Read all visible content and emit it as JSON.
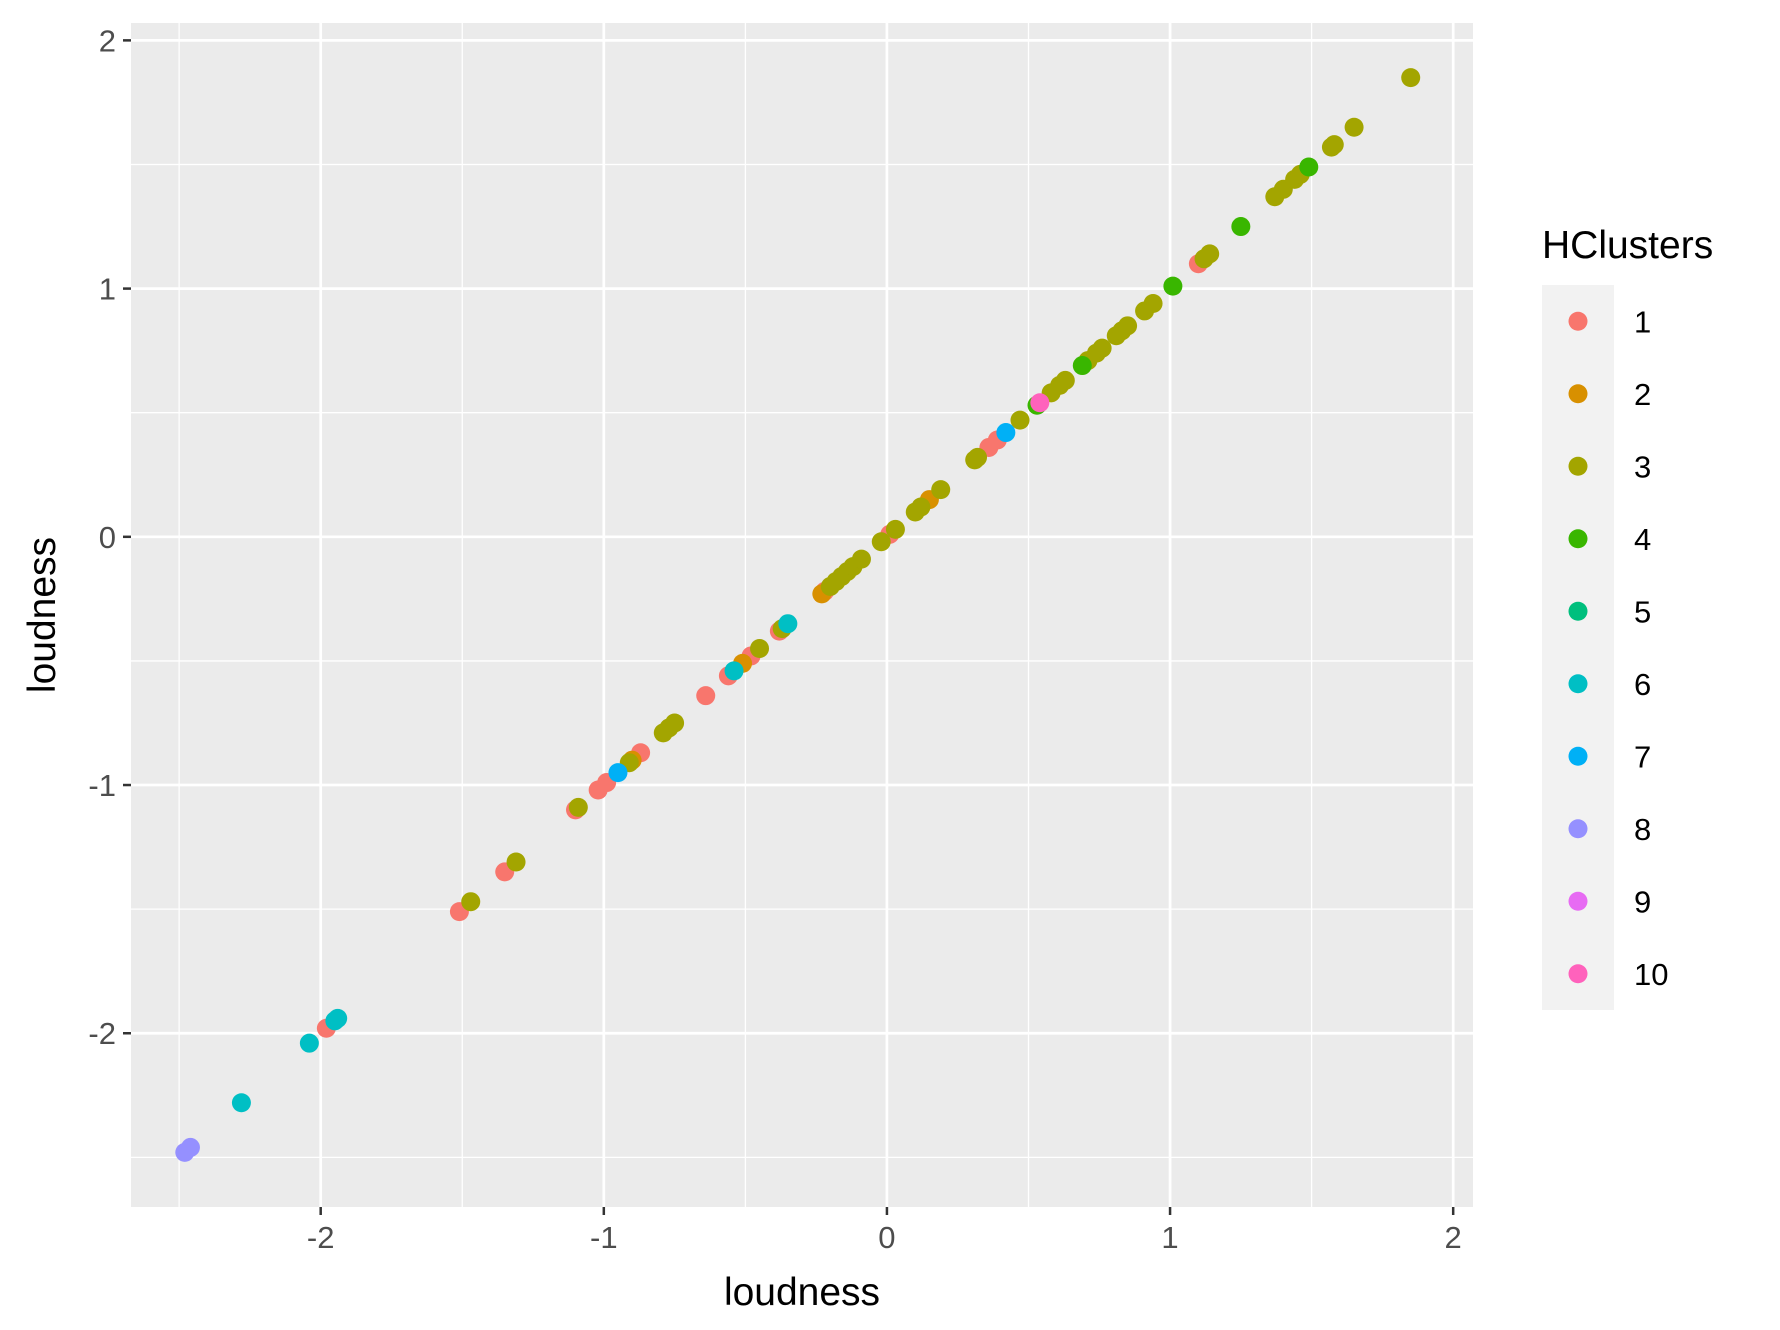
{
  "chart_data": {
    "type": "scatter",
    "title": "",
    "xlabel": "loudness",
    "ylabel": "loudness",
    "xlim": [
      -2.67,
      2.07
    ],
    "ylim": [
      -2.7,
      2.07
    ],
    "xticks": [
      -2,
      -1,
      0,
      1,
      2
    ],
    "yticks": [
      -2,
      -1,
      0,
      1,
      2
    ],
    "grid": true,
    "background": "#ebebeb",
    "legend": {
      "title": "HClusters",
      "placement": "right",
      "background": "#f2f2f2"
    },
    "series": [
      {
        "name": "1",
        "color": "#F8766D",
        "points": [
          [
            -1.98,
            -1.98
          ],
          [
            -1.51,
            -1.51
          ],
          [
            -1.35,
            -1.35
          ],
          [
            -1.1,
            -1.1
          ],
          [
            -1.02,
            -1.02
          ],
          [
            -0.99,
            -0.99
          ],
          [
            -0.87,
            -0.87
          ],
          [
            -0.64,
            -0.64
          ],
          [
            -0.56,
            -0.56
          ],
          [
            -0.48,
            -0.48
          ],
          [
            -0.38,
            -0.38
          ],
          [
            -0.22,
            -0.22
          ],
          [
            0.01,
            0.01
          ],
          [
            0.36,
            0.36
          ],
          [
            0.39,
            0.39
          ],
          [
            1.1,
            1.1
          ]
        ]
      },
      {
        "name": "2",
        "color": "#D89000",
        "points": [
          [
            -0.9,
            -0.9
          ],
          [
            -0.51,
            -0.51
          ],
          [
            -0.23,
            -0.23
          ],
          [
            0.15,
            0.15
          ]
        ]
      },
      {
        "name": "3",
        "color": "#A3A500",
        "points": [
          [
            -1.47,
            -1.47
          ],
          [
            -1.31,
            -1.31
          ],
          [
            -1.09,
            -1.09
          ],
          [
            -0.91,
            -0.91
          ],
          [
            -0.79,
            -0.79
          ],
          [
            -0.77,
            -0.77
          ],
          [
            -0.75,
            -0.75
          ],
          [
            -0.45,
            -0.45
          ],
          [
            -0.37,
            -0.37
          ],
          [
            -0.2,
            -0.2
          ],
          [
            -0.18,
            -0.18
          ],
          [
            -0.16,
            -0.16
          ],
          [
            -0.14,
            -0.14
          ],
          [
            -0.12,
            -0.12
          ],
          [
            -0.09,
            -0.09
          ],
          [
            -0.02,
            -0.02
          ],
          [
            0.03,
            0.03
          ],
          [
            0.1,
            0.1
          ],
          [
            0.12,
            0.12
          ],
          [
            0.19,
            0.19
          ],
          [
            0.31,
            0.31
          ],
          [
            0.32,
            0.32
          ],
          [
            0.47,
            0.47
          ],
          [
            0.58,
            0.58
          ],
          [
            0.61,
            0.61
          ],
          [
            0.63,
            0.63
          ],
          [
            0.71,
            0.71
          ],
          [
            0.74,
            0.74
          ],
          [
            0.76,
            0.76
          ],
          [
            0.81,
            0.81
          ],
          [
            0.83,
            0.83
          ],
          [
            0.85,
            0.85
          ],
          [
            0.91,
            0.91
          ],
          [
            0.94,
            0.94
          ],
          [
            1.12,
            1.12
          ],
          [
            1.14,
            1.14
          ],
          [
            1.37,
            1.37
          ],
          [
            1.4,
            1.4
          ],
          [
            1.44,
            1.44
          ],
          [
            1.46,
            1.46
          ],
          [
            1.57,
            1.57
          ],
          [
            1.58,
            1.58
          ],
          [
            1.65,
            1.65
          ],
          [
            1.85,
            1.85
          ]
        ]
      },
      {
        "name": "4",
        "color": "#39B600",
        "points": [
          [
            0.53,
            0.53
          ],
          [
            0.69,
            0.69
          ],
          [
            1.01,
            1.01
          ],
          [
            1.25,
            1.25
          ],
          [
            1.49,
            1.49
          ]
        ]
      },
      {
        "name": "5",
        "color": "#00BF7D",
        "points": []
      },
      {
        "name": "6",
        "color": "#00BFC4",
        "points": [
          [
            -2.28,
            -2.28
          ],
          [
            -2.04,
            -2.04
          ],
          [
            -1.95,
            -1.95
          ],
          [
            -1.94,
            -1.94
          ],
          [
            -0.54,
            -0.54
          ],
          [
            -0.35,
            -0.35
          ]
        ]
      },
      {
        "name": "7",
        "color": "#00B0F6",
        "points": [
          [
            -0.95,
            -0.95
          ],
          [
            0.42,
            0.42
          ]
        ]
      },
      {
        "name": "8",
        "color": "#9590FF",
        "points": [
          [
            -2.48,
            -2.48
          ],
          [
            -2.46,
            -2.46
          ]
        ]
      },
      {
        "name": "9",
        "color": "#E76BF3",
        "points": []
      },
      {
        "name": "10",
        "color": "#FF62BC",
        "points": [
          [
            0.54,
            0.54
          ]
        ]
      }
    ]
  }
}
